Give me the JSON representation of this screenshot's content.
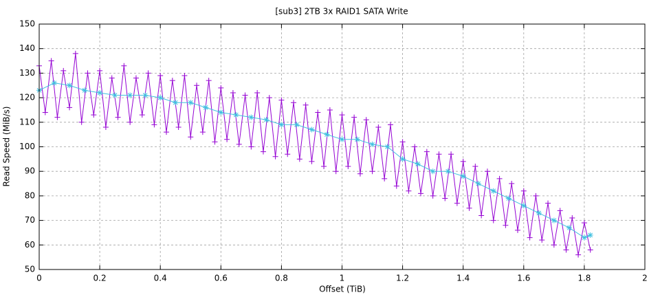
{
  "chart_data": {
    "type": "line",
    "title": "[sub3] 2TB 3x RAID1 SATA Write",
    "x_label": "Offset (TiB)",
    "y_label": "Read Speed (MiB/s)",
    "xlim": [
      0,
      2
    ],
    "xticks": [
      0,
      0.2,
      0.4,
      0.6,
      0.8,
      1,
      1.2,
      1.4,
      1.6,
      1.8,
      2
    ],
    "ylim": [
      50,
      150
    ],
    "yticks": [
      50,
      60,
      70,
      80,
      90,
      100,
      110,
      120,
      130,
      140,
      150
    ],
    "grid": true,
    "series": [
      {
        "color": "#9400d3",
        "marker": "plus",
        "x": [
          0,
          0.02,
          0.04,
          0.06,
          0.08,
          0.1,
          0.12,
          0.14,
          0.16,
          0.18,
          0.2,
          0.22,
          0.24,
          0.26,
          0.28,
          0.3,
          0.32,
          0.34,
          0.36,
          0.38,
          0.4,
          0.42,
          0.44,
          0.46,
          0.48,
          0.5,
          0.52,
          0.54,
          0.56,
          0.58,
          0.6,
          0.62,
          0.64,
          0.66,
          0.68,
          0.7,
          0.72,
          0.74,
          0.76,
          0.78,
          0.8,
          0.82,
          0.84,
          0.86,
          0.88,
          0.9,
          0.92,
          0.94,
          0.96,
          0.98,
          1,
          1.02,
          1.04,
          1.06,
          1.08,
          1.1,
          1.12,
          1.14,
          1.16,
          1.18,
          1.2,
          1.22,
          1.24,
          1.26,
          1.28,
          1.3,
          1.32,
          1.34,
          1.36,
          1.38,
          1.4,
          1.42,
          1.44,
          1.46,
          1.48,
          1.5,
          1.52,
          1.54,
          1.56,
          1.58,
          1.6,
          1.62,
          1.64,
          1.66,
          1.68,
          1.7,
          1.72,
          1.74,
          1.76,
          1.78,
          1.8,
          1.82
        ],
        "values": [
          133,
          114,
          135,
          112,
          131,
          116,
          138,
          110,
          130,
          113,
          131,
          108,
          128,
          112,
          133,
          110,
          128,
          113,
          130,
          109,
          129,
          106,
          127,
          108,
          129,
          104,
          125,
          106,
          127,
          102,
          124,
          103,
          122,
          101,
          121,
          100,
          122,
          98,
          120,
          96,
          119,
          97,
          118,
          95,
          117,
          94,
          114,
          92,
          115,
          90,
          113,
          92,
          112,
          89,
          111,
          90,
          108,
          87,
          109,
          84,
          102,
          82,
          100,
          81,
          98,
          80,
          97,
          79,
          97,
          77,
          94,
          75,
          92,
          72,
          90,
          70,
          87,
          68,
          85,
          66,
          82,
          63,
          80,
          62,
          77,
          60,
          74,
          58,
          71,
          56,
          69,
          58
        ]
      },
      {
        "color": "#40c0e0",
        "marker": "star",
        "x": [
          0,
          0.05,
          0.1,
          0.15,
          0.2,
          0.25,
          0.3,
          0.35,
          0.4,
          0.45,
          0.5,
          0.55,
          0.6,
          0.65,
          0.7,
          0.75,
          0.8,
          0.85,
          0.9,
          0.95,
          1,
          1.05,
          1.1,
          1.15,
          1.2,
          1.25,
          1.3,
          1.35,
          1.4,
          1.45,
          1.5,
          1.55,
          1.6,
          1.65,
          1.7,
          1.75,
          1.8,
          1.82
        ],
        "values": [
          123,
          126,
          125,
          123,
          122,
          121,
          121,
          121,
          120,
          118,
          118,
          116,
          114,
          113,
          112,
          111,
          109,
          109,
          107,
          105,
          103,
          103,
          101,
          100,
          95,
          93,
          90,
          90,
          88,
          85,
          82,
          79,
          76,
          73,
          70,
          67,
          63,
          64
        ]
      }
    ]
  }
}
